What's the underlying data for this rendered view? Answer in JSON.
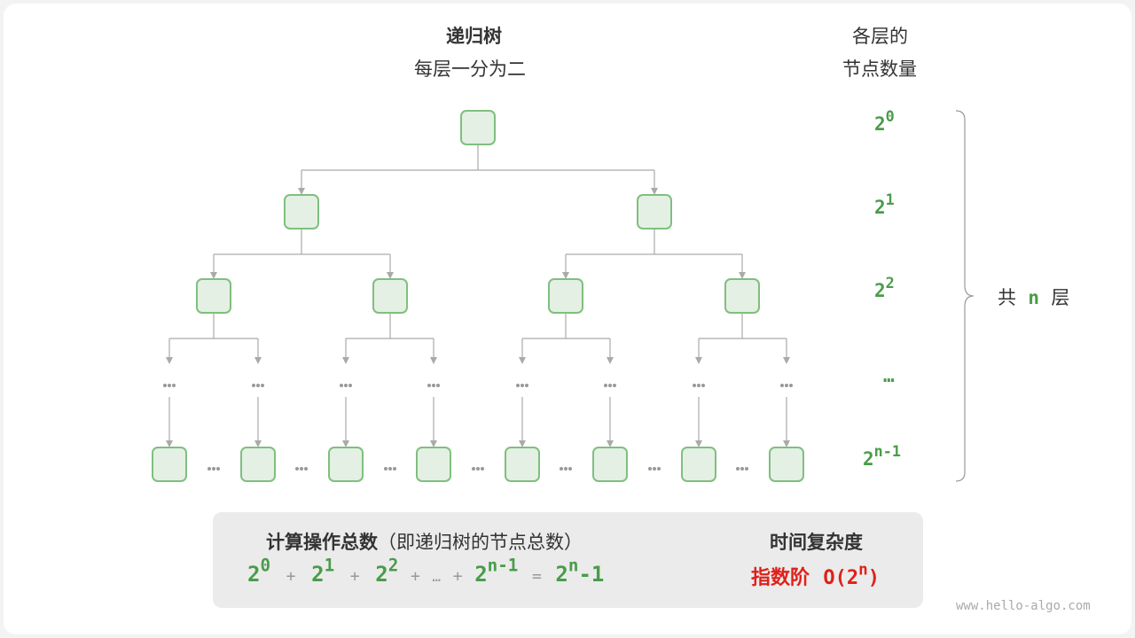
{
  "title": {
    "main": "递归树",
    "sub": "每层一分为二"
  },
  "level_header": {
    "line1": "各层的",
    "line2": "节点数量"
  },
  "levels": [
    {
      "base": "2",
      "exp": "0"
    },
    {
      "base": "2",
      "exp": "1"
    },
    {
      "base": "2",
      "exp": "2"
    },
    {
      "base": "…",
      "exp": ""
    },
    {
      "base": "2",
      "exp": "n-1"
    }
  ],
  "total_layers": {
    "pre": "共",
    "n": "n",
    "post": "层"
  },
  "summary": {
    "heading_bold": "计算操作总数",
    "heading_paren": "（即递归树的节点总数）",
    "formula": {
      "t0": "2",
      "e0": "0",
      "plus": "+",
      "t1": "2",
      "e1": "1",
      "t2": "2",
      "e2": "2",
      "dots": "…",
      "tn": "2",
      "en": "n-1",
      "eq": "=",
      "rb": "2",
      "re": "n",
      "rs": "-1"
    },
    "complexity_heading": "时间复杂度",
    "complexity_name": "指数阶",
    "complexity_value": {
      "pre": "O(2",
      "exp": "n",
      "post": ")"
    }
  },
  "watermark": "www.hello-algo.com",
  "colors": {
    "node_fill": "#e4f0e4",
    "node_stroke": "#7fbf7f",
    "green": "#4a9c4a",
    "red": "#e0201a",
    "edge": "#aaaaaa"
  }
}
